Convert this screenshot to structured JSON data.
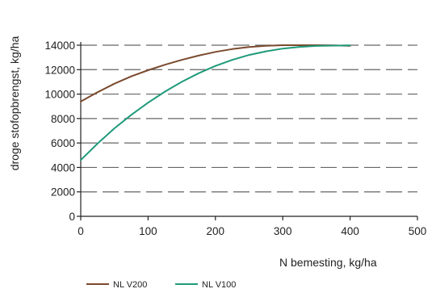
{
  "chart_data": {
    "type": "line",
    "xlabel": "N bemesting, kg/ha",
    "ylabel": "droge stofopbrengst, kg/ha",
    "xlim": [
      0,
      500
    ],
    "ylim": [
      0,
      14000
    ],
    "xticks": [
      0,
      100,
      200,
      300,
      400,
      500
    ],
    "yticks": [
      0,
      2000,
      4000,
      6000,
      8000,
      10000,
      12000,
      14000
    ],
    "grid": "horizontal-dashed",
    "legend_position": "bottom-left",
    "series": [
      {
        "name": "NL V200",
        "color": "#7a4a2e",
        "x": [
          0,
          25,
          50,
          75,
          100,
          125,
          150,
          175,
          200,
          225,
          250,
          275,
          300,
          325,
          350,
          375,
          400
        ],
        "y": [
          9400,
          10150,
          10850,
          11450,
          11950,
          12400,
          12800,
          13150,
          13450,
          13680,
          13850,
          13950,
          14000,
          14000,
          14000,
          13980,
          13950
        ]
      },
      {
        "name": "NL V100",
        "color": "#1f9a7a",
        "x": [
          0,
          25,
          50,
          75,
          100,
          125,
          150,
          175,
          200,
          225,
          250,
          275,
          300,
          325,
          350,
          375,
          400
        ],
        "y": [
          4600,
          5950,
          7200,
          8300,
          9300,
          10200,
          11000,
          11700,
          12300,
          12800,
          13200,
          13500,
          13720,
          13860,
          13940,
          13970,
          13980
        ]
      }
    ]
  }
}
